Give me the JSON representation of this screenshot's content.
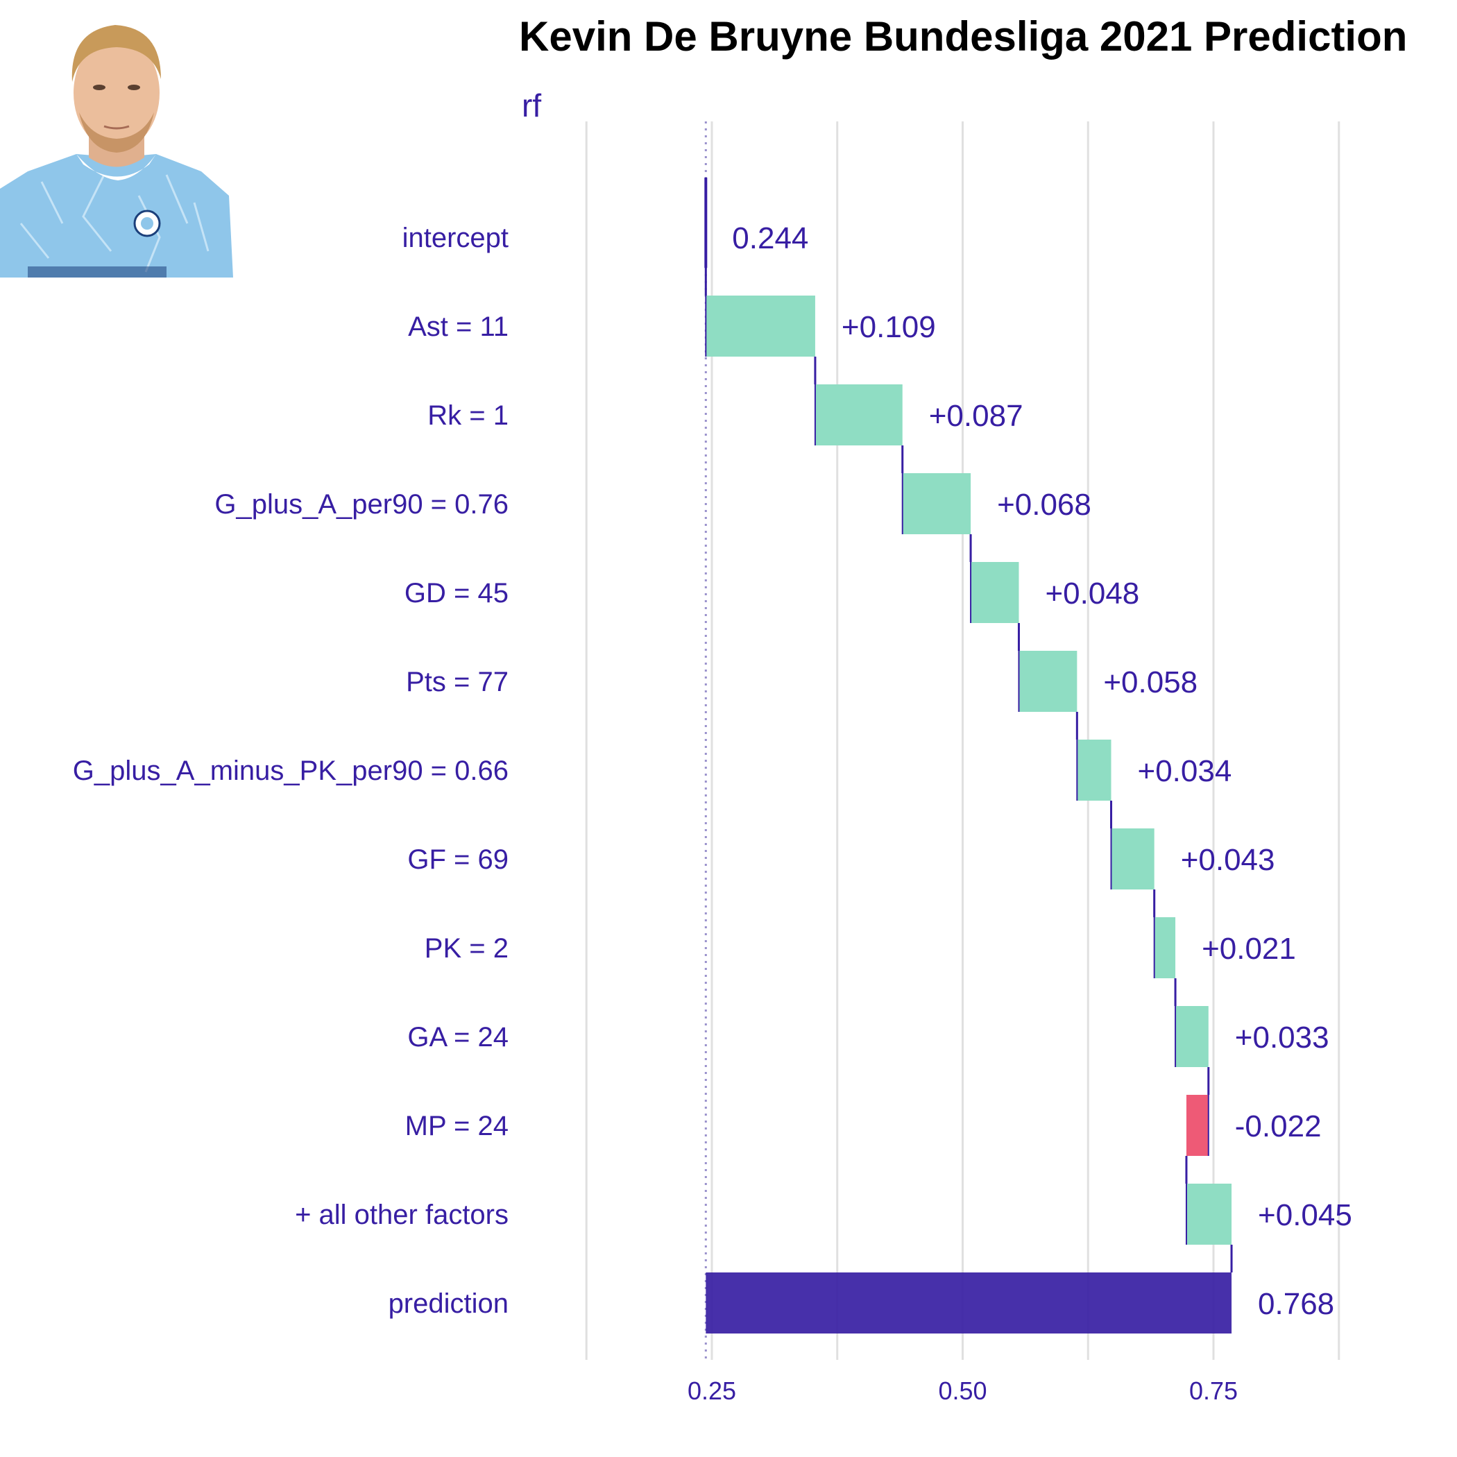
{
  "title": "Kevin De Bruyne Bundesliga 2021 Prediction",
  "chart_data": {
    "type": "waterfall",
    "model_label": "rf",
    "baseline": 0.244,
    "xlim": [
      0.12,
      0.88
    ],
    "x_ticks": [
      0.25,
      0.5,
      0.75
    ],
    "x_tick_labels": [
      "0.25",
      "0.50",
      "0.75"
    ],
    "grid": true,
    "colors": {
      "positive": "#8FDDC3",
      "negative": "#EE5A76",
      "prediction": "#371EA3",
      "text": "#371EA3",
      "grid": "#E0E0E0"
    },
    "rows": [
      {
        "label": "intercept",
        "kind": "intercept",
        "value": 0.244,
        "value_label": "0.244"
      },
      {
        "label": "Ast = 11",
        "kind": "contribution",
        "value": 0.109,
        "value_label": "+0.109"
      },
      {
        "label": "Rk = 1",
        "kind": "contribution",
        "value": 0.087,
        "value_label": "+0.087"
      },
      {
        "label": "G_plus_A_per90 = 0.76",
        "kind": "contribution",
        "value": 0.068,
        "value_label": "+0.068"
      },
      {
        "label": "GD = 45",
        "kind": "contribution",
        "value": 0.048,
        "value_label": "+0.048"
      },
      {
        "label": "Pts = 77",
        "kind": "contribution",
        "value": 0.058,
        "value_label": "+0.058"
      },
      {
        "label": "G_plus_A_minus_PK_per90 = 0.66",
        "kind": "contribution",
        "value": 0.034,
        "value_label": "+0.034"
      },
      {
        "label": "GF = 69",
        "kind": "contribution",
        "value": 0.043,
        "value_label": "+0.043"
      },
      {
        "label": "PK = 2",
        "kind": "contribution",
        "value": 0.021,
        "value_label": "+0.021"
      },
      {
        "label": "GA = 24",
        "kind": "contribution",
        "value": 0.033,
        "value_label": "+0.033"
      },
      {
        "label": "MP = 24",
        "kind": "contribution",
        "value": -0.022,
        "value_label": "-0.022"
      },
      {
        "label": "+ all other factors",
        "kind": "contribution",
        "value": 0.045,
        "value_label": "+0.045"
      },
      {
        "label": "prediction",
        "kind": "prediction",
        "value": 0.768,
        "value_label": "0.768"
      }
    ]
  }
}
